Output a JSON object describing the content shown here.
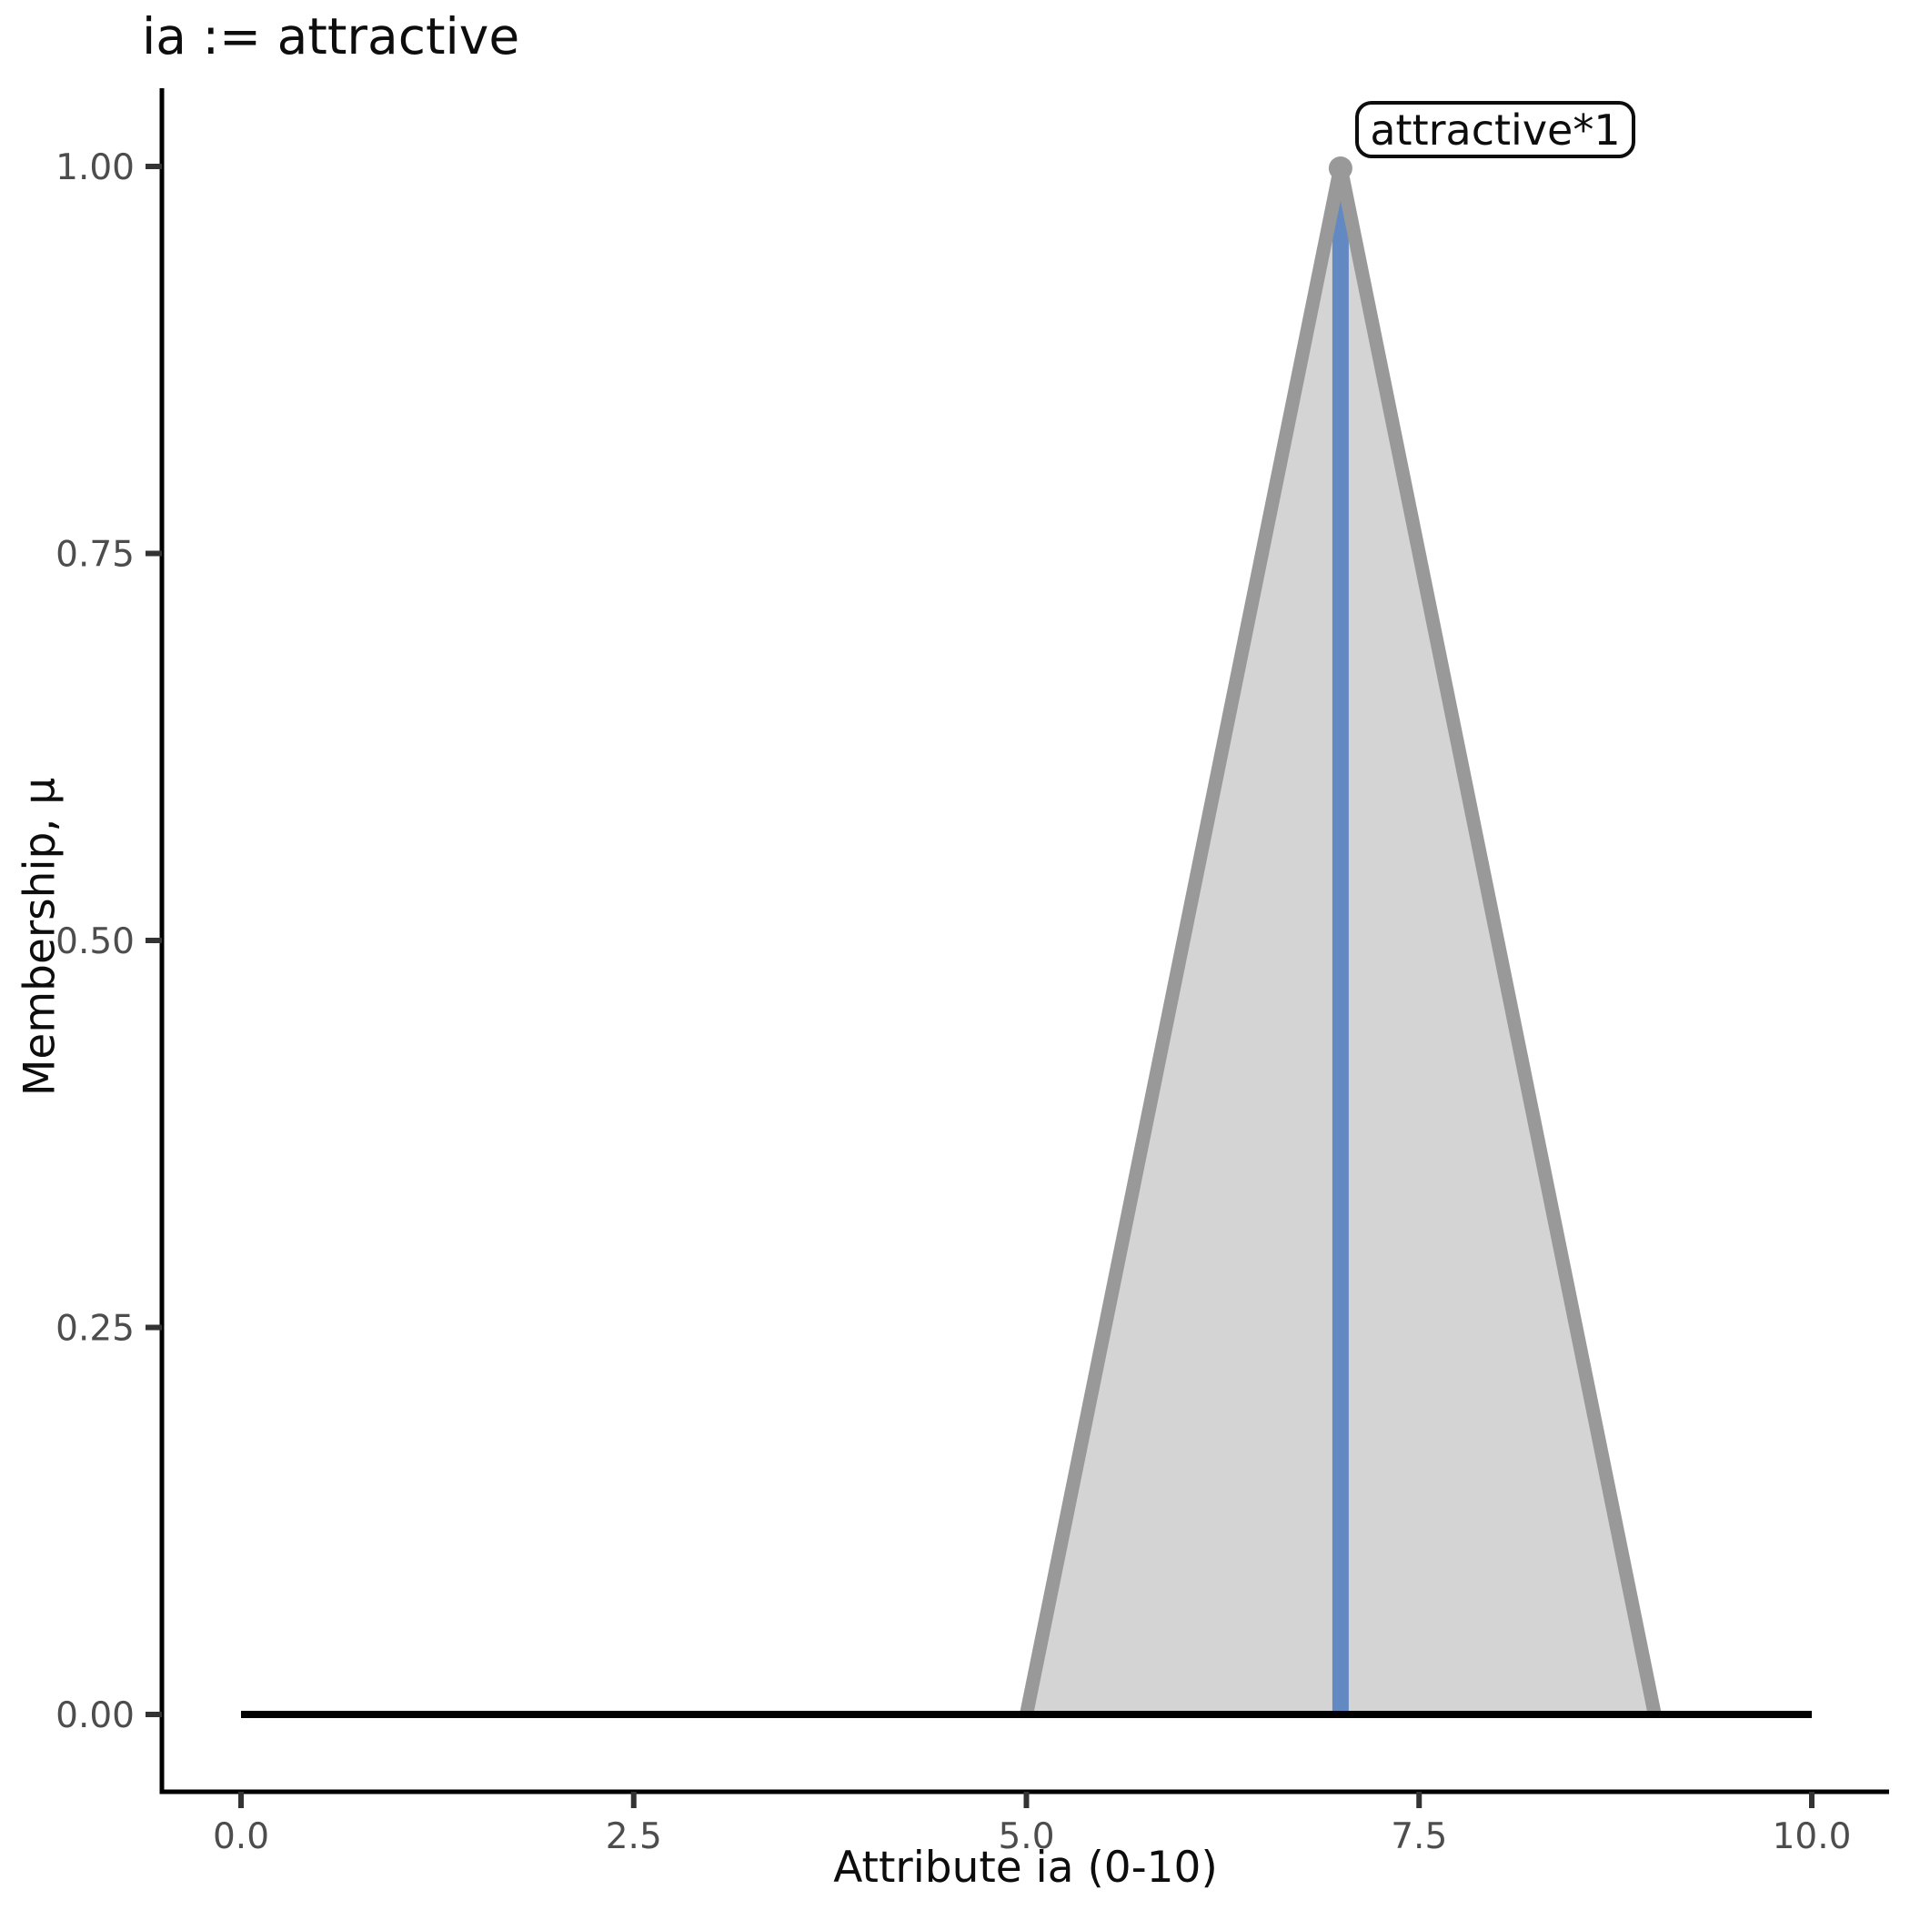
{
  "chart_data": {
    "type": "area",
    "title": "ia := attractive",
    "xlabel": "Attribute ia (0-10)",
    "ylabel": "Membership, μ",
    "xlim": [
      0,
      10
    ],
    "ylim": [
      0,
      1
    ],
    "grid": false,
    "legend": "none",
    "x_ticks": {
      "values": [
        0,
        2.5,
        5,
        7.5,
        10
      ],
      "labels": [
        "0.0",
        "2.5",
        "5.0",
        "7.5",
        "10.0"
      ]
    },
    "y_ticks": {
      "values": [
        0,
        0.25,
        0.5,
        0.75,
        1
      ],
      "labels": [
        "0.00",
        "0.25",
        "0.50",
        "0.75",
        "1.00"
      ]
    },
    "series": [
      {
        "name": "universe-baseline",
        "type": "line",
        "color": "#000000",
        "width": 8,
        "points": [
          [
            0,
            0
          ],
          [
            10,
            0
          ]
        ]
      },
      {
        "name": "attractive-triangular-membership",
        "type": "area",
        "fill": "#d4d4d4",
        "stroke": "#999999",
        "stroke_width": 15,
        "points": [
          [
            5,
            0
          ],
          [
            7,
            1
          ],
          [
            9,
            0
          ]
        ]
      },
      {
        "name": "membership-core-line",
        "type": "vline",
        "color": "#6289c2",
        "width": 18,
        "x": 7,
        "y0": 0,
        "y1": 1
      }
    ],
    "annotation": {
      "label": "attractive*1",
      "anchor_x": 7.2,
      "anchor_y": 1.0
    }
  },
  "colors": {
    "background": "#ffffff",
    "axis_line": "#000000",
    "tick_mark": "#333333",
    "tick_label": "#4d4d4d",
    "text": "#0d0d0d",
    "membership_fill": "#d4d4d4",
    "membership_stroke": "#999999",
    "core_blue": "#6289c2"
  }
}
